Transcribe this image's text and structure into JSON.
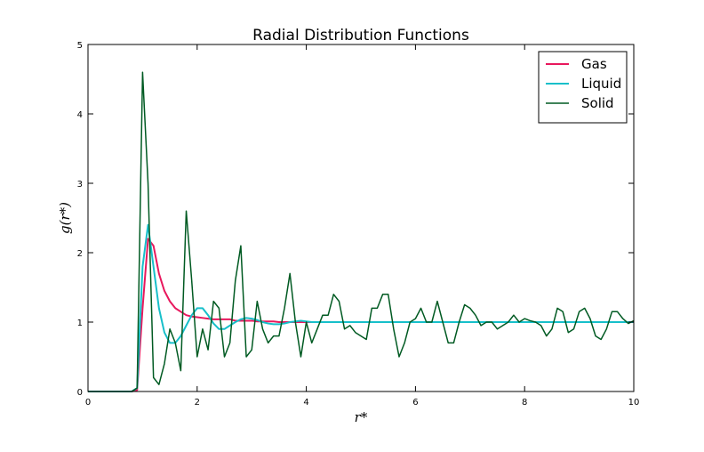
{
  "chart_data": {
    "type": "line",
    "title": "Radial Distribution Functions",
    "x_label": "r*",
    "y_label": "g(r*)",
    "x": [
      0,
      0.1,
      0.2,
      0.3,
      0.4,
      0.5,
      0.6,
      0.7,
      0.8,
      0.9,
      1,
      1.1,
      1.2,
      1.3,
      1.4,
      1.5,
      1.6,
      1.7,
      1.8,
      1.9,
      2,
      2.1,
      2.2,
      2.3,
      2.4,
      2.5,
      2.6,
      2.7,
      2.8,
      2.9,
      3,
      3.1,
      3.2,
      3.3,
      3.4,
      3.5,
      3.6,
      3.7,
      3.8,
      3.9,
      4,
      4.1,
      4.2,
      4.3,
      4.4,
      4.5,
      4.6,
      4.7,
      4.8,
      4.9,
      5,
      5.1,
      5.2,
      5.3,
      5.4,
      5.5,
      5.6,
      5.7,
      5.8,
      5.9,
      6,
      6.1,
      6.2,
      6.3,
      6.4,
      6.5,
      6.6,
      6.7,
      6.8,
      6.9,
      7,
      7.1,
      7.2,
      7.3,
      7.4,
      7.5,
      7.6,
      7.7,
      7.8,
      7.9,
      8,
      8.1,
      8.2,
      8.3,
      8.4,
      8.5,
      8.6,
      8.7,
      8.8,
      8.9,
      9,
      9.1,
      9.2,
      9.3,
      9.4,
      9.5,
      9.6,
      9.7,
      9.8,
      9.9,
      10
    ],
    "series": [
      {
        "name": "Gas",
        "color": "#e8185d",
        "values": [
          0,
          0,
          0,
          0,
          0,
          0,
          0,
          0,
          0,
          0.02,
          1.2,
          2.2,
          2.1,
          1.7,
          1.45,
          1.3,
          1.2,
          1.15,
          1.1,
          1.08,
          1.07,
          1.06,
          1.05,
          1.04,
          1.04,
          1.04,
          1.04,
          1.02,
          1.02,
          1.02,
          1.02,
          1.01,
          1.01,
          1.01,
          1.01,
          1,
          1,
          1,
          1,
          1,
          1,
          1,
          1,
          1,
          1,
          1,
          1,
          1,
          1,
          1,
          1,
          1,
          1,
          1,
          1,
          1,
          1,
          1,
          1,
          1,
          1,
          1,
          1,
          1,
          1,
          1,
          1,
          1,
          1,
          1,
          1,
          1,
          1,
          1,
          1,
          1,
          1,
          1,
          1,
          1,
          1,
          1,
          1,
          1,
          1,
          1,
          1,
          1,
          1,
          1,
          1,
          1,
          1,
          1,
          1,
          1,
          1,
          1,
          1,
          1,
          1
        ]
      },
      {
        "name": "Liquid",
        "color": "#17bfca",
        "values": [
          0,
          0,
          0,
          0,
          0,
          0,
          0,
          0,
          0,
          0.05,
          1.8,
          2.4,
          1.8,
          1.2,
          0.85,
          0.7,
          0.7,
          0.8,
          0.95,
          1.1,
          1.2,
          1.2,
          1.1,
          0.98,
          0.9,
          0.9,
          0.95,
          1.0,
          1.04,
          1.06,
          1.05,
          1.03,
          1.0,
          0.98,
          0.97,
          0.97,
          0.98,
          1.0,
          1.01,
          1.02,
          1.01,
          1,
          1,
          1,
          1,
          1,
          1,
          1,
          1,
          1,
          1,
          1,
          1,
          1,
          1,
          1,
          1,
          1,
          1,
          1,
          1,
          1,
          1,
          1,
          1,
          1,
          1,
          1,
          1,
          1,
          1,
          1,
          1,
          1,
          1,
          1,
          1,
          1,
          1,
          1,
          1,
          1,
          1,
          1,
          1,
          1,
          1,
          1,
          1,
          1,
          1,
          1,
          1,
          1,
          1,
          1,
          1,
          1,
          1,
          1,
          1
        ]
      },
      {
        "name": "Solid",
        "color": "#005a22",
        "values": [
          0,
          0,
          0,
          0,
          0,
          0,
          0,
          0,
          0,
          0.05,
          4.6,
          3.0,
          0.2,
          0.1,
          0.4,
          0.9,
          0.7,
          0.3,
          2.6,
          1.6,
          0.5,
          0.9,
          0.6,
          1.3,
          1.2,
          0.5,
          0.7,
          1.6,
          2.1,
          0.5,
          0.6,
          1.3,
          0.9,
          0.7,
          0.8,
          0.8,
          1.2,
          1.7,
          1.0,
          0.5,
          1.0,
          0.7,
          0.9,
          1.1,
          1.1,
          1.4,
          1.3,
          0.9,
          0.95,
          0.85,
          0.8,
          0.75,
          1.2,
          1.2,
          1.4,
          1.4,
          0.9,
          0.5,
          0.7,
          1.0,
          1.05,
          1.2,
          1.0,
          1.0,
          1.3,
          1.0,
          0.7,
          0.7,
          1.0,
          1.25,
          1.2,
          1.1,
          0.95,
          1.0,
          1.0,
          0.9,
          0.95,
          1.0,
          1.1,
          1.0,
          1.05,
          1.02,
          1.0,
          0.95,
          0.8,
          0.9,
          1.2,
          1.15,
          0.85,
          0.9,
          1.15,
          1.2,
          1.05,
          0.8,
          0.75,
          0.9,
          1.15,
          1.15,
          1.05,
          0.98,
          1.02
        ]
      }
    ],
    "xlim": [
      0,
      10
    ],
    "xticks": [
      0,
      2,
      4,
      6,
      8,
      10
    ],
    "ylim": [
      0,
      5
    ],
    "yticks": [
      0,
      1,
      2,
      3,
      4,
      5
    ],
    "legend": "upper right"
  }
}
